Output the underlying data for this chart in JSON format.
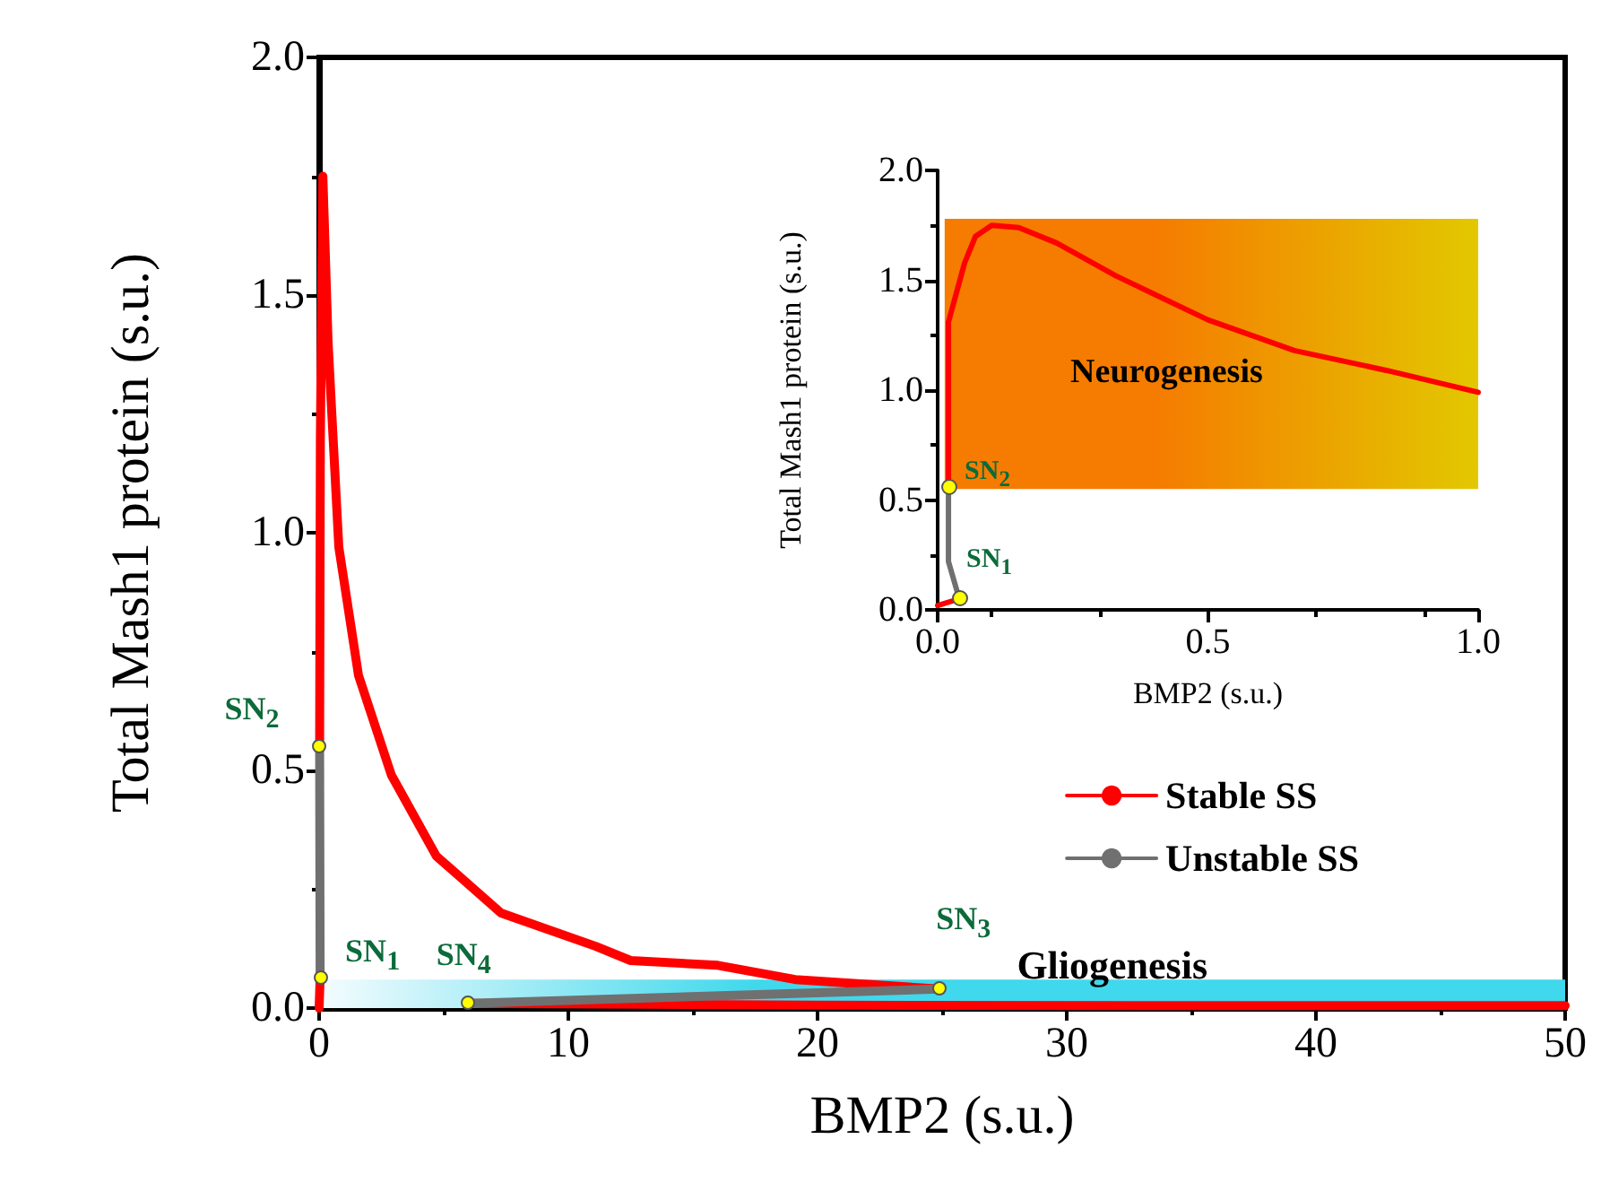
{
  "chart_data": [
    {
      "type": "line",
      "xlabel": "BMP2 (s.u.)",
      "ylabel": "Total Mash1 protein (s.u.)",
      "xlim": [
        0,
        50
      ],
      "xticks": [
        0,
        10,
        20,
        30,
        40,
        50
      ],
      "ylim": [
        0,
        2.0
      ],
      "yticks": [
        {
          "value": 0,
          "label": "0.0"
        },
        {
          "value": 0.5,
          "label": "0.5"
        },
        {
          "value": 1.0,
          "label": "1.0"
        },
        {
          "value": 1.5,
          "label": "1.5"
        },
        {
          "value": 2.0,
          "label": "2.0"
        }
      ],
      "legend": "bottom right",
      "grid": false,
      "marker": "none",
      "series": [
        {
          "name": "Stable SS",
          "color": "#ff0000",
          "x": [
            0,
            0.04,
            null,
            0.02,
            0.05,
            0.15,
            0.36,
            0.79,
            1.58,
            2.9,
            4.7,
            7.3,
            11.1,
            12.5,
            16,
            19.1,
            24.9,
            null,
            6.0,
            20,
            35,
            50
          ],
          "values": [
            0,
            0.065,
            null,
            0.55,
            1.2,
            1.75,
            1.4,
            0.97,
            0.7,
            0.49,
            0.32,
            0.2,
            0.13,
            0.1,
            0.09,
            0.06,
            0.04,
            null,
            0.01,
            0.006,
            0.005,
            0.005
          ]
        },
        {
          "name": "Unstable SS",
          "color": "#707070",
          "x": [
            0.04,
            0.02,
            null,
            24.9,
            6.0
          ],
          "values": [
            0.065,
            0.55,
            null,
            0.04,
            0.01
          ]
        }
      ],
      "bands": [
        {
          "axis": "y",
          "from": 0,
          "to": 0.06,
          "label": "Gliogenesis",
          "color": "#40d8ec"
        }
      ],
      "annotations": [
        {
          "text": "SN$_{1}$",
          "x": 0.04,
          "y": 0.065
        },
        {
          "text": "SN$_{2}$",
          "x": 0.02,
          "y": 0.55
        },
        {
          "text": "SN$_{3}$",
          "x": 24.9,
          "y": 0.04
        },
        {
          "text": "SN$_{4}$",
          "x": 6.0,
          "y": 0.01
        }
      ]
    },
    {
      "type": "line",
      "xlabel": "BMP2 (s.u.)",
      "ylabel": "Total Mash1 protein (s.u.)",
      "xlim": [
        0,
        1.0
      ],
      "xticks": [
        {
          "value": 0,
          "label": "0.0"
        },
        {
          "value": 0.5,
          "label": "0.5"
        },
        {
          "value": 1.0,
          "label": "1.0"
        }
      ],
      "ylim": [
        0,
        2.0
      ],
      "yticks": [
        {
          "value": 0,
          "label": "0.0"
        },
        {
          "value": 0.5,
          "label": "0.5"
        },
        {
          "value": 1.0,
          "label": "1.0"
        },
        {
          "value": 1.5,
          "label": "1.5"
        },
        {
          "value": 2.0,
          "label": "2.0"
        }
      ],
      "grid": false,
      "marker": "none",
      "series": [
        {
          "color": "#ff0000",
          "x": [
            0,
            0.04,
            null,
            0.02,
            0.02,
            0.05,
            0.07,
            0.1,
            0.15,
            0.22,
            0.33,
            0.5,
            0.66,
            0.83,
            1.0
          ],
          "values": [
            0.02,
            0.05,
            null,
            0.56,
            1.31,
            1.58,
            1.7,
            1.75,
            1.74,
            1.67,
            1.52,
            1.32,
            1.18,
            1.09,
            0.99
          ]
        },
        {
          "color": "#707070",
          "x": [
            0.04,
            0.02,
            0.02
          ],
          "values": [
            0.05,
            0.22,
            0.56
          ]
        }
      ],
      "bands": [
        {
          "axis": "y",
          "from": 0.55,
          "to": 1.78,
          "label": "Neurogenesis",
          "color": "#f57c00"
        }
      ],
      "annotations": [
        {
          "text": "SN$_{2}$",
          "x": 0.02,
          "y": 0.56
        },
        {
          "text": "SN$_{1}$",
          "x": 0.04,
          "y": 0.05
        }
      ]
    }
  ]
}
